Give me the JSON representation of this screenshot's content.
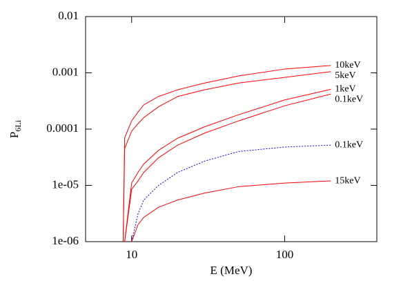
{
  "chart_data": {
    "type": "line",
    "xlabel": "E (MeV)",
    "ylabel": "P",
    "ylabel_subscript": "6Li",
    "xscale": "log",
    "yscale": "log",
    "xlim": [
      5,
      400
    ],
    "ylim": [
      1e-06,
      0.01
    ],
    "xticks": [
      10,
      100
    ],
    "yticks": [
      {
        "value": 1e-06,
        "label": "1e-06"
      },
      {
        "value": 1e-05,
        "label": "1e-05"
      },
      0.0001,
      0.001,
      0.01
    ],
    "x": [
      8.8,
      9,
      10,
      11,
      12,
      15,
      20,
      30,
      50,
      100,
      200
    ],
    "series": [
      {
        "name": "10keV",
        "color": "#ff0000",
        "style": "solid",
        "values": [
          1e-06,
          7e-05,
          0.00014,
          0.0002,
          0.00027,
          0.00038,
          0.0005,
          0.00066,
          0.00088,
          0.00117,
          0.00135
        ]
      },
      {
        "name": "5keV",
        "color": "#ff0000",
        "style": "solid",
        "values": [
          1e-06,
          4.5e-05,
          9.2e-05,
          0.000125,
          0.00016,
          0.00025,
          0.00038,
          0.0005,
          0.00066,
          0.00083,
          0.00105
        ]
      },
      {
        "name": "1keV",
        "color": "#ff0000",
        "style": "solid",
        "values": [
          null,
          1e-06,
          1.1e-05,
          1.7e-05,
          2.4e-05,
          4.2e-05,
          6.9e-05,
          0.00011,
          0.00018,
          0.00033,
          0.00051
        ]
      },
      {
        "name": "0.1keV",
        "color": "#ff0000",
        "style": "solid",
        "values": [
          null,
          1e-06,
          8.5e-06,
          1.2e-05,
          1.7e-05,
          3.1e-05,
          5.2e-05,
          8.5e-05,
          0.00014,
          0.00026,
          0.00042
        ]
      },
      {
        "name": "0.1keV",
        "color": "#0000ff",
        "style": "dotted",
        "values": [
          null,
          null,
          1e-06,
          3.1e-06,
          5.5e-06,
          1e-05,
          1.7e-05,
          2.7e-05,
          4e-05,
          4.8e-05,
          5.2e-05
        ]
      },
      {
        "name": "15keV",
        "color": "#ff0000",
        "style": "solid",
        "values": [
          null,
          null,
          1e-06,
          2e-06,
          2.7e-06,
          4.1e-06,
          5.5e-06,
          7.3e-06,
          9.5e-06,
          1.1e-05,
          1.2e-05
        ]
      }
    ]
  }
}
